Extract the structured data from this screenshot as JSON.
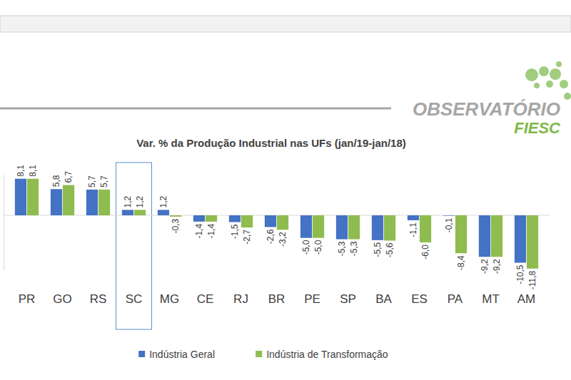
{
  "logo": {
    "line1": "OBSERVATÓRIO",
    "line2": "FIESC"
  },
  "chart_data": {
    "type": "bar",
    "title": "Var. % da Produção Industrial nas UFs (jan/19-jan/18)",
    "categories": [
      "PR",
      "GO",
      "RS",
      "SC",
      "MG",
      "CE",
      "RJ",
      "BR",
      "PE",
      "SP",
      "BA",
      "ES",
      "PA",
      "MT",
      "AM"
    ],
    "series": [
      {
        "name": "Indústria Geral",
        "color": "#4472c4",
        "values": [
          8.1,
          5.8,
          5.7,
          1.2,
          1.2,
          -1.4,
          -1.5,
          -2.6,
          -5.0,
          -5.3,
          -5.5,
          -1.1,
          -0.1,
          -9.2,
          -10.5
        ],
        "value_labels": [
          "8,1",
          "5,8",
          "5,7",
          "1,2",
          "1,2",
          "-1,4",
          "-1,5",
          "-2,6",
          "-5,0",
          "-5,3",
          "-5,5",
          "-1,1",
          "-0,1",
          "-9,2",
          "-10,5"
        ]
      },
      {
        "name": "Indústria de Transformação",
        "color": "#8fbc4f",
        "values": [
          8.1,
          6.7,
          5.7,
          1.2,
          -0.3,
          -1.4,
          -2.7,
          -3.2,
          -5.0,
          -5.3,
          -5.6,
          -6.0,
          -8.4,
          -9.2,
          -11.8
        ],
        "value_labels": [
          "8,1",
          "6,7",
          "5,7",
          "1,2",
          "-0,3",
          "-1,4",
          "-2,7",
          "-3,2",
          "-5,0",
          "-5,3",
          "-5,6",
          "-6,0",
          "-8,4",
          "-9,2",
          "-11,8"
        ]
      }
    ],
    "ylim": [
      -12,
      9
    ],
    "yticks": [
      0
    ],
    "grid": true,
    "data_labels": true,
    "tick_labels": "x",
    "legend": "bottom"
  }
}
